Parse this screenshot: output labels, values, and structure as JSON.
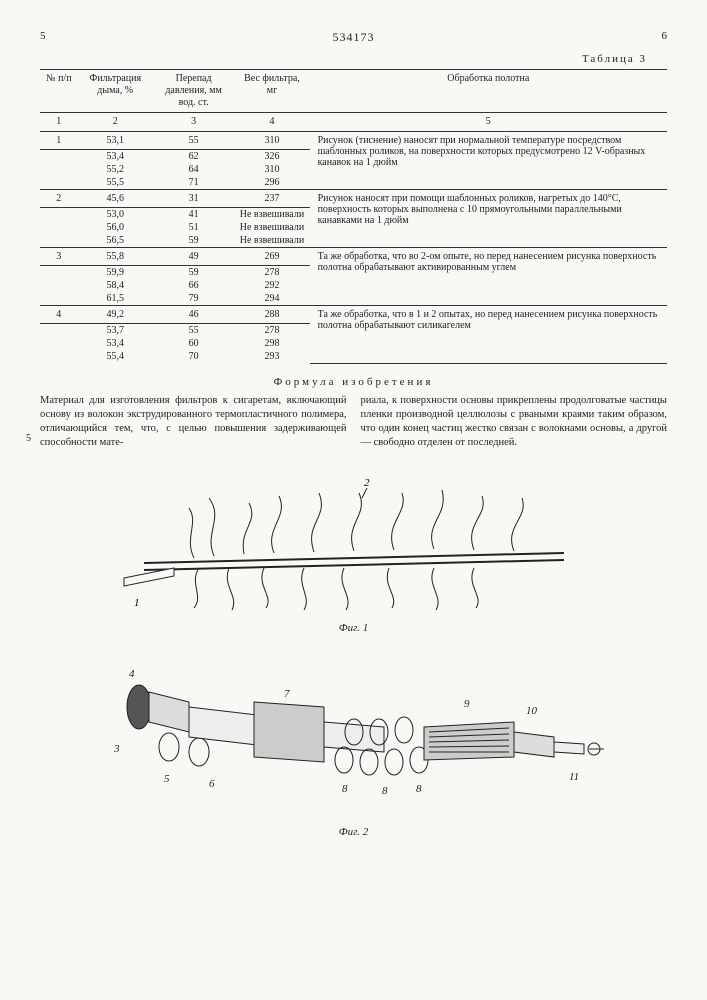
{
  "doc_number": "534173",
  "col_left": "5",
  "col_right": "6",
  "table_label": "Таблица 3",
  "margin_number": "5",
  "table": {
    "headers": [
      "№ п/п",
      "Фильтрация дыма, %",
      "Перепад давления, мм вод. ст.",
      "Вес фильтра, мг",
      "Обработка полотна"
    ],
    "subheaders": [
      "1",
      "2",
      "3",
      "4",
      "5"
    ],
    "groups": [
      {
        "idx": "1",
        "rows": [
          [
            "53,1",
            "55",
            "310"
          ],
          [
            "53,4",
            "62",
            "326"
          ],
          [
            "55,2",
            "64",
            "310"
          ],
          [
            "55,5",
            "71",
            "296"
          ]
        ],
        "desc": "Рисунок (тиснение) наносят при нормальной температуре посредством шаблонных роликов, на поверхности которых предусмотрено 12 V-образных канавок на 1 дюйм"
      },
      {
        "idx": "2",
        "rows": [
          [
            "45,6",
            "31",
            "237"
          ],
          [
            "53,0",
            "41",
            "Не взвешивали"
          ],
          [
            "56,0",
            "51",
            "Не взвешивали"
          ],
          [
            "56,5",
            "59",
            "Не взвешивали"
          ]
        ],
        "desc": "Рисунок наносят при помощи шаблонных роликов, нагретых до 140°С, поверхность которых выполнена с 10 прямоугольными параллельными канавками на 1 дюйм"
      },
      {
        "idx": "3",
        "rows": [
          [
            "55,8",
            "49",
            "269"
          ],
          [
            "59,9",
            "59",
            "278"
          ],
          [
            "58,4",
            "66",
            "292"
          ],
          [
            "61,5",
            "79",
            "294"
          ]
        ],
        "desc": "Та же обработка, что во 2-ом опыте, но перед нанесением рисунка поверхность полотна обрабатывают активированным углем"
      },
      {
        "idx": "4",
        "rows": [
          [
            "49,2",
            "46",
            "288"
          ],
          [
            "53,7",
            "55",
            "278"
          ],
          [
            "53,4",
            "60",
            "298"
          ],
          [
            "55,4",
            "70",
            "293"
          ]
        ],
        "desc": "Та же обработка, что в 1 и 2 опытах, но перед нанесением рисунка поверхность полотна обрабатывают силикагелем"
      }
    ]
  },
  "formula_title": "Формула изобретения",
  "body_left": "Материал для изготовления фильтров к сигаретам, включающий основу из волокон экструдированного термопластичного полимера, отличающийся тем, что, с целью повышения задерживающей способности мате-",
  "body_right": "риала, к поверхности основы прикреплены продолговатые частицы пленки производной целлюлозы с рваными краями таким образом, что один конец частиц жестко связан с волокнами основы, а другой — свободно отделен от последней.",
  "fig1_label": "Фиг. 1",
  "fig2_label": "Фиг. 2",
  "fig1_markers": {
    "m1": "1",
    "m2": "2"
  },
  "fig2_markers": {
    "m3": "3",
    "m4": "4",
    "m5": "5",
    "m6": "6",
    "m7": "7",
    "m8": "8",
    "m8b": "8",
    "m8c": "8",
    "m9": "9",
    "m10": "10",
    "m11": "11"
  }
}
